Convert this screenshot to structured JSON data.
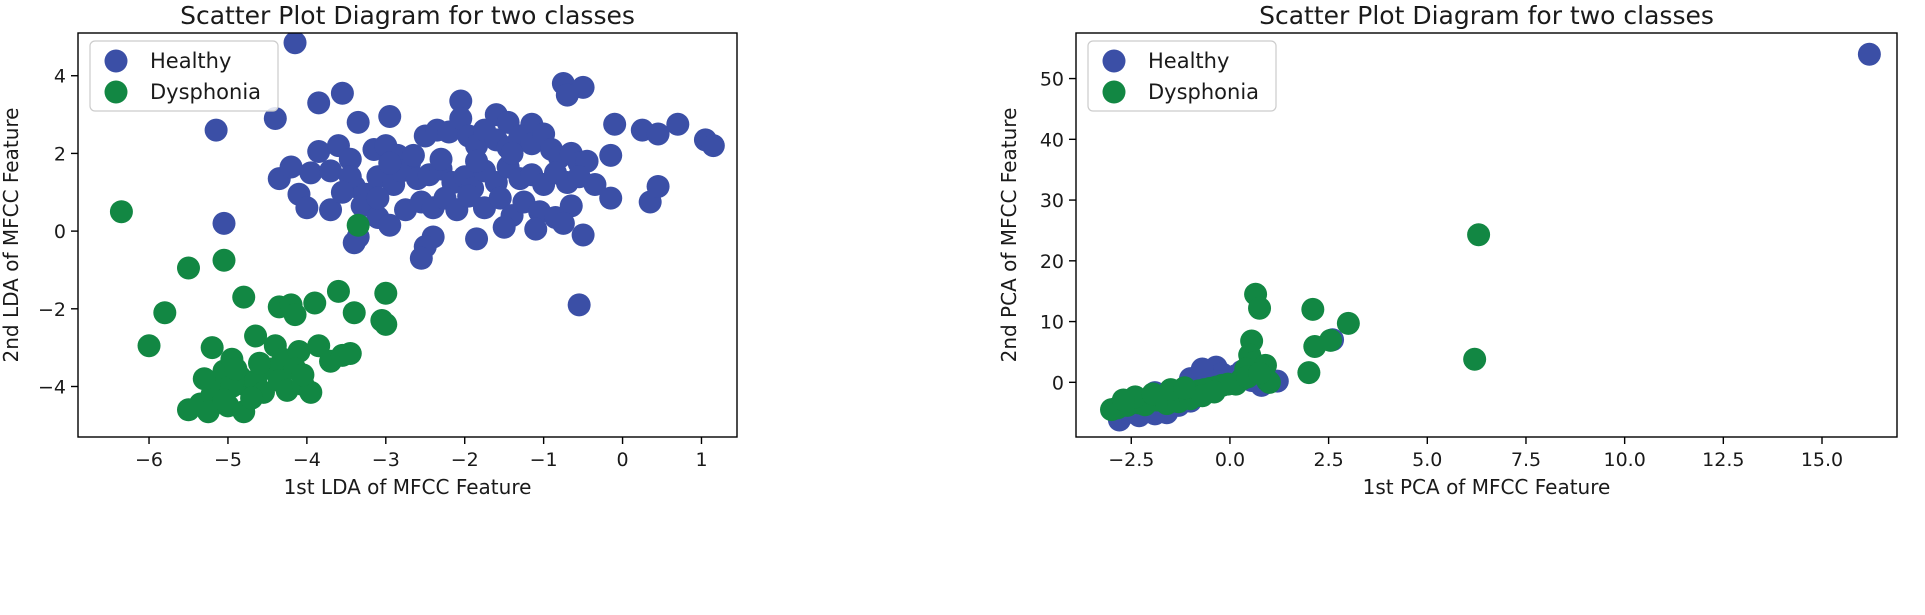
{
  "chart_data": [
    {
      "type": "scatter",
      "title": "Scatter Plot Diagram for two classes",
      "xlabel": "1st LDA of MFCC Feature",
      "ylabel": "2nd LDA of MFCC Feature",
      "xlim": [
        -6.9,
        1.45
      ],
      "ylim": [
        -5.3,
        5.1
      ],
      "xticks": [
        -6,
        -5,
        -4,
        -3,
        -2,
        -1,
        0,
        1
      ],
      "xtick_labels": [
        "−6",
        "−5",
        "−4",
        "−3",
        "−2",
        "−1",
        "0",
        "1"
      ],
      "yticks": [
        -4,
        -2,
        0,
        2,
        4
      ],
      "ytick_labels": [
        "−4",
        "−2",
        "0",
        "2",
        "4"
      ],
      "legend": "top-left",
      "series": [
        {
          "name": "Healthy",
          "color": "#3b4fa6",
          "points": [
            [
              -4.15,
              4.85
            ],
            [
              -3.55,
              3.55
            ],
            [
              -3.85,
              3.3
            ],
            [
              -4.4,
              2.9
            ],
            [
              -5.15,
              2.6
            ],
            [
              -3.35,
              2.8
            ],
            [
              -2.95,
              2.95
            ],
            [
              -2.05,
              3.35
            ],
            [
              -0.75,
              3.8
            ],
            [
              -0.5,
              3.7
            ],
            [
              -0.7,
              3.5
            ],
            [
              -1.6,
              3.0
            ],
            [
              -1.45,
              2.8
            ],
            [
              -1.15,
              2.75
            ],
            [
              -0.1,
              2.75
            ],
            [
              0.25,
              2.6
            ],
            [
              0.45,
              2.5
            ],
            [
              0.7,
              2.75
            ],
            [
              1.05,
              2.35
            ],
            [
              1.15,
              2.2
            ],
            [
              -4.35,
              1.35
            ],
            [
              -4.2,
              1.65
            ],
            [
              -3.85,
              2.05
            ],
            [
              -3.6,
              2.2
            ],
            [
              -3.95,
              1.5
            ],
            [
              -3.7,
              1.55
            ],
            [
              -3.45,
              1.85
            ],
            [
              -3.15,
              2.1
            ],
            [
              -3.0,
              2.2
            ],
            [
              -2.85,
              1.95
            ],
            [
              -2.7,
              1.75
            ],
            [
              -2.5,
              2.45
            ],
            [
              -2.35,
              2.6
            ],
            [
              -2.2,
              2.55
            ],
            [
              -2.05,
              2.9
            ],
            [
              -1.95,
              2.45
            ],
            [
              -1.85,
              2.2
            ],
            [
              -1.75,
              2.6
            ],
            [
              -1.6,
              2.35
            ],
            [
              -1.45,
              2.15
            ],
            [
              -1.3,
              2.45
            ],
            [
              -1.15,
              2.25
            ],
            [
              -1.0,
              2.5
            ],
            [
              -0.9,
              2.1
            ],
            [
              -0.8,
              1.9
            ],
            [
              -0.65,
              2.0
            ],
            [
              -0.55,
              1.75
            ],
            [
              -0.45,
              1.8
            ],
            [
              -0.15,
              1.95
            ],
            [
              -4.1,
              0.95
            ],
            [
              -4.0,
              0.6
            ],
            [
              -3.7,
              0.55
            ],
            [
              -3.4,
              1.15
            ],
            [
              -3.25,
              0.95
            ],
            [
              -3.1,
              1.4
            ],
            [
              -2.9,
              1.2
            ],
            [
              -2.8,
              1.55
            ],
            [
              -2.6,
              1.35
            ],
            [
              -2.45,
              1.45
            ],
            [
              -2.3,
              1.6
            ],
            [
              -2.15,
              1.25
            ],
            [
              -2.0,
              1.4
            ],
            [
              -1.9,
              1.1
            ],
            [
              -1.75,
              1.55
            ],
            [
              -1.6,
              1.25
            ],
            [
              -1.45,
              1.65
            ],
            [
              -1.3,
              1.35
            ],
            [
              -1.15,
              1.45
            ],
            [
              -1.0,
              1.2
            ],
            [
              -0.85,
              1.5
            ],
            [
              -0.7,
              1.25
            ],
            [
              -0.55,
              1.4
            ],
            [
              -0.35,
              1.2
            ],
            [
              -0.15,
              0.85
            ],
            [
              0.35,
              0.75
            ],
            [
              0.45,
              1.15
            ],
            [
              -3.3,
              0.65
            ],
            [
              -3.1,
              0.35
            ],
            [
              -2.95,
              0.15
            ],
            [
              -2.75,
              0.55
            ],
            [
              -2.55,
              0.75
            ],
            [
              -2.4,
              0.6
            ],
            [
              -2.25,
              0.85
            ],
            [
              -2.1,
              0.55
            ],
            [
              -1.95,
              0.9
            ],
            [
              -1.75,
              0.6
            ],
            [
              -1.55,
              0.85
            ],
            [
              -1.4,
              0.4
            ],
            [
              -1.25,
              0.75
            ],
            [
              -1.05,
              0.5
            ],
            [
              -0.85,
              0.35
            ],
            [
              -0.65,
              0.65
            ],
            [
              -0.75,
              0.2
            ],
            [
              -0.5,
              -0.1
            ],
            [
              -1.5,
              0.1
            ],
            [
              -1.1,
              0.05
            ],
            [
              -3.35,
              -0.15
            ],
            [
              -3.4,
              -0.3
            ],
            [
              -2.4,
              -0.15
            ],
            [
              -2.5,
              -0.4
            ],
            [
              -2.55,
              -0.7
            ],
            [
              -1.85,
              -0.2
            ],
            [
              -0.55,
              -1.9
            ],
            [
              -5.05,
              0.2
            ],
            [
              -3.1,
              0.85
            ],
            [
              -2.65,
              1.95
            ],
            [
              -1.4,
              2.0
            ],
            [
              -2.3,
              1.85
            ],
            [
              -1.85,
              1.8
            ],
            [
              -3.45,
              1.4
            ],
            [
              -3.55,
              1.0
            ],
            [
              -2.95,
              1.75
            ]
          ]
        },
        {
          "name": "Dysphonia",
          "color": "#128743",
          "points": [
            [
              -6.35,
              0.5
            ],
            [
              -3.35,
              0.15
            ],
            [
              -5.5,
              -0.95
            ],
            [
              -5.05,
              -0.75
            ],
            [
              -4.8,
              -1.7
            ],
            [
              -4.35,
              -1.95
            ],
            [
              -4.2,
              -1.9
            ],
            [
              -4.15,
              -2.15
            ],
            [
              -3.9,
              -1.85
            ],
            [
              -3.6,
              -1.55
            ],
            [
              -3.0,
              -1.6
            ],
            [
              -3.4,
              -2.1
            ],
            [
              -3.05,
              -2.3
            ],
            [
              -3.0,
              -2.4
            ],
            [
              -5.8,
              -2.1
            ],
            [
              -6.0,
              -2.95
            ],
            [
              -5.2,
              -3.0
            ],
            [
              -4.65,
              -2.7
            ],
            [
              -4.4,
              -2.95
            ],
            [
              -4.3,
              -3.3
            ],
            [
              -4.1,
              -3.1
            ],
            [
              -3.85,
              -2.95
            ],
            [
              -3.7,
              -3.35
            ],
            [
              -3.55,
              -3.2
            ],
            [
              -3.45,
              -3.15
            ],
            [
              -5.5,
              -4.6
            ],
            [
              -5.35,
              -4.45
            ],
            [
              -5.2,
              -4.2
            ],
            [
              -5.1,
              -3.9
            ],
            [
              -5.05,
              -3.6
            ],
            [
              -4.95,
              -3.3
            ],
            [
              -4.85,
              -3.75
            ],
            [
              -4.75,
              -4.0
            ],
            [
              -4.65,
              -3.85
            ],
            [
              -4.55,
              -4.15
            ],
            [
              -4.45,
              -3.55
            ],
            [
              -4.35,
              -3.85
            ],
            [
              -4.25,
              -4.1
            ],
            [
              -4.15,
              -3.55
            ],
            [
              -4.05,
              -3.95
            ],
            [
              -3.95,
              -4.15
            ],
            [
              -5.25,
              -4.65
            ],
            [
              -5.0,
              -4.5
            ],
            [
              -4.8,
              -4.65
            ],
            [
              -5.15,
              -4.05
            ],
            [
              -4.95,
              -4.0
            ],
            [
              -5.3,
              -3.8
            ],
            [
              -4.6,
              -3.4
            ],
            [
              -4.05,
              -3.7
            ],
            [
              -4.7,
              -4.3
            ],
            [
              -5.05,
              -4.35
            ],
            [
              -4.9,
              -3.55
            ]
          ]
        }
      ]
    },
    {
      "type": "scatter",
      "title": "Scatter Plot Diagram for two classes",
      "xlabel": "1st PCA of MFCC Feature",
      "ylabel": "2nd PCA of MFCC Feature",
      "xlim": [
        -3.9,
        16.9
      ],
      "ylim": [
        -9.0,
        57.5
      ],
      "xticks": [
        -2.5,
        0,
        2.5,
        5,
        7.5,
        10,
        12.5,
        15
      ],
      "xtick_labels": [
        "−2.5",
        "0.0",
        "2.5",
        "5.0",
        "7.5",
        "10.0",
        "12.5",
        "15.0"
      ],
      "yticks": [
        0,
        10,
        20,
        30,
        40,
        50
      ],
      "ytick_labels": [
        "0",
        "10",
        "20",
        "30",
        "40",
        "50"
      ],
      "legend": "top-left",
      "series": [
        {
          "name": "Healthy",
          "color": "#3b4fa6",
          "points": [
            [
              16.2,
              54.0
            ],
            [
              2.6,
              7.0
            ],
            [
              -2.8,
              -6.2
            ],
            [
              -2.6,
              -5.0
            ],
            [
              -2.4,
              -4.0
            ],
            [
              -2.2,
              -4.7
            ],
            [
              -2.0,
              -3.5
            ],
            [
              -1.9,
              -5.2
            ],
            [
              -1.7,
              -4.2
            ],
            [
              -1.5,
              -3.0
            ],
            [
              -1.3,
              -3.8
            ],
            [
              -1.1,
              -2.5
            ],
            [
              -0.9,
              -1.6
            ],
            [
              -0.7,
              -0.8
            ],
            [
              -0.5,
              0.8
            ],
            [
              -0.35,
              2.5
            ],
            [
              -0.2,
              1.4
            ],
            [
              0.05,
              0.5
            ],
            [
              0.3,
              1.8
            ],
            [
              0.55,
              0.3
            ],
            [
              0.8,
              -0.5
            ],
            [
              1.2,
              0.2
            ],
            [
              -2.5,
              -3.0
            ],
            [
              -2.1,
              -3.2
            ],
            [
              -1.8,
              -2.6
            ],
            [
              -1.55,
              -4.4
            ],
            [
              -1.4,
              -2.1
            ],
            [
              -1.2,
              -1.3
            ],
            [
              -1.0,
              -3.1
            ],
            [
              -0.8,
              -2.0
            ],
            [
              -0.6,
              -1.0
            ],
            [
              -0.45,
              -0.2
            ],
            [
              -0.25,
              0.1
            ],
            [
              0.15,
              1.1
            ],
            [
              -1.0,
              0.6
            ],
            [
              -0.7,
              2.2
            ],
            [
              -2.7,
              -4.4
            ],
            [
              -2.3,
              -5.5
            ],
            [
              -1.6,
              -5.0
            ],
            [
              -1.9,
              -1.7
            ]
          ]
        },
        {
          "name": "Dysphonia",
          "color": "#128743",
          "points": [
            [
              6.3,
              24.3
            ],
            [
              0.65,
              14.5
            ],
            [
              0.75,
              12.2
            ],
            [
              2.1,
              12.0
            ],
            [
              3.0,
              9.7
            ],
            [
              0.55,
              6.8
            ],
            [
              2.15,
              5.9
            ],
            [
              2.55,
              6.9
            ],
            [
              6.2,
              3.8
            ],
            [
              2.0,
              1.6
            ],
            [
              0.5,
              4.5
            ],
            [
              0.6,
              3.2
            ],
            [
              0.4,
              2.2
            ],
            [
              0.9,
              2.8
            ],
            [
              0.3,
              0.5
            ],
            [
              0.95,
              0.3
            ],
            [
              1.0,
              0.0
            ],
            [
              0.15,
              -0.3
            ],
            [
              -0.2,
              -0.5
            ],
            [
              -0.5,
              -1.0
            ],
            [
              -0.8,
              -1.4
            ],
            [
              -1.1,
              -1.8
            ],
            [
              -1.4,
              -2.2
            ],
            [
              -1.7,
              -2.6
            ],
            [
              -2.0,
              -3.0
            ],
            [
              -2.3,
              -3.4
            ],
            [
              -2.6,
              -3.8
            ],
            [
              -3.0,
              -4.5
            ],
            [
              -2.85,
              -4.2
            ],
            [
              -2.45,
              -3.2
            ],
            [
              -2.15,
              -3.7
            ],
            [
              -1.85,
              -2.9
            ],
            [
              -1.55,
              -2.4
            ],
            [
              -1.25,
              -2.0
            ],
            [
              -0.95,
              -1.6
            ],
            [
              -0.65,
              -1.2
            ],
            [
              -0.35,
              -0.8
            ],
            [
              -0.05,
              -0.3
            ],
            [
              0.45,
              0.9
            ],
            [
              -2.4,
              -2.4
            ],
            [
              -1.95,
              -1.9
            ],
            [
              -1.6,
              -3.5
            ],
            [
              -1.3,
              -3.2
            ],
            [
              -1.0,
              -2.7
            ],
            [
              -0.7,
              -2.2
            ],
            [
              -0.4,
              -1.6
            ],
            [
              -2.7,
              -2.9
            ],
            [
              0.75,
              1.5
            ],
            [
              -1.5,
              -1.2
            ],
            [
              -1.15,
              -0.9
            ]
          ]
        }
      ]
    }
  ]
}
